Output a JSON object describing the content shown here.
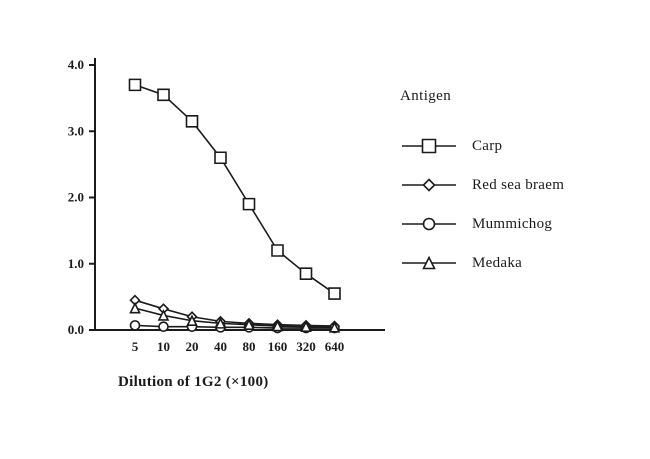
{
  "chart_data": {
    "type": "line",
    "title": "",
    "xlabel": "Dilution of 1G2 (×100)",
    "ylabel": "",
    "x_categories": [
      "5",
      "10",
      "20",
      "40",
      "80",
      "160",
      "320",
      "640"
    ],
    "ylim": [
      0,
      4
    ],
    "yticks": [
      0,
      1,
      2,
      3,
      4
    ],
    "ytick_labels": [
      "0.0",
      "1.0",
      "2.0",
      "3.0",
      "4.0"
    ],
    "grid": false,
    "axis_color": "#1b1b1b",
    "legend": {
      "title": "Antigen",
      "position": "right"
    },
    "series": [
      {
        "name": "Carp",
        "marker": "square",
        "color": "#1b1b1b",
        "values": [
          3.7,
          3.55,
          3.15,
          2.6,
          1.9,
          1.2,
          0.85,
          0.55
        ]
      },
      {
        "name": "Red sea braem",
        "marker": "diamond",
        "color": "#1b1b1b",
        "values": [
          0.45,
          0.32,
          0.2,
          0.13,
          0.1,
          0.08,
          0.07,
          0.06
        ]
      },
      {
        "name": "Mummichog",
        "marker": "circle",
        "color": "#1b1b1b",
        "values": [
          0.07,
          0.05,
          0.05,
          0.04,
          0.04,
          0.03,
          0.03,
          0.03
        ]
      },
      {
        "name": "Medaka",
        "marker": "triangle",
        "color": "#1b1b1b",
        "values": [
          0.33,
          0.22,
          0.14,
          0.1,
          0.08,
          0.06,
          0.05,
          0.04
        ]
      }
    ]
  }
}
